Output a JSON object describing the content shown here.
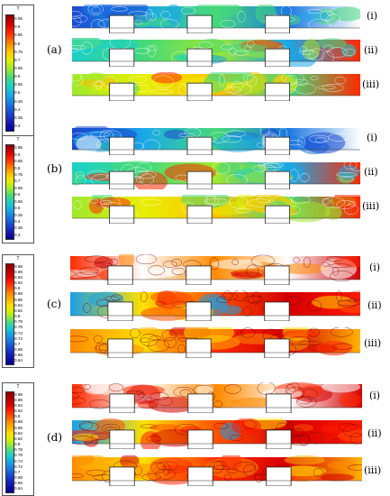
{
  "groups": [
    {
      "label": "(a)",
      "legend": {
        "title": "T",
        "ticks": [
          "0.95",
          "0.9",
          "0.85",
          "0.8",
          "0.75",
          "0.7",
          "0.65",
          "0.6",
          "0.55",
          "0.5",
          "0.45",
          "0.4",
          "0.35",
          "0.3"
        ],
        "colors": [
          "#8b0000",
          "#d40000",
          "#ff2a00",
          "#ff7a00",
          "#ffc000",
          "#e8ef00",
          "#9fe82e",
          "#45d97a",
          "#1ad0c8",
          "#1aa8e8",
          "#1a78e0",
          "#1a48d0",
          "#1a1ab8",
          "#000090"
        ]
      },
      "rows": [
        {
          "label": "(i)",
          "style": "cool"
        },
        {
          "label": "(ii)",
          "style": "mid"
        },
        {
          "label": "(iii)",
          "style": "warm"
        }
      ]
    },
    {
      "label": "(b)",
      "legend": {
        "title": "T",
        "ticks": [
          "0.95",
          "0.9",
          "0.85",
          "0.8",
          "0.75",
          "0.7",
          "0.65",
          "0.6",
          "0.55",
          "0.5",
          "0.45",
          "0.4",
          "0.35",
          "0.3"
        ],
        "colors": [
          "#8b0000",
          "#d40000",
          "#ff2a00",
          "#ff7a00",
          "#ffc000",
          "#e8ef00",
          "#9fe82e",
          "#45d97a",
          "#1ad0c8",
          "#1aa8e8",
          "#1a78e0",
          "#1a48d0",
          "#1a1ab8",
          "#000090"
        ]
      },
      "rows": [
        {
          "label": "(i)",
          "style": "cool"
        },
        {
          "label": "(ii)",
          "style": "mid"
        },
        {
          "label": "(iii)",
          "style": "warm"
        }
      ]
    },
    {
      "label": "(c)",
      "legend": {
        "title": "T",
        "ticks": [
          "0.98",
          "0.96",
          "0.94",
          "0.92",
          "0.9",
          "0.88",
          "0.86",
          "0.84",
          "0.82",
          "0.8",
          "0.78",
          "0.76",
          "0.74",
          "0.72",
          "0.7",
          "0.68",
          "0.66",
          "0.64"
        ],
        "colors": [
          "#8b0000",
          "#b00000",
          "#d40000",
          "#ff1a00",
          "#ff5000",
          "#ff8a00",
          "#ffb400",
          "#ffe000",
          "#d8f000",
          "#90e840",
          "#40d890",
          "#18c8d0",
          "#18a0e8",
          "#1878e0",
          "#1850d0",
          "#1828c0",
          "#1010a8",
          "#000090"
        ]
      },
      "rows": [
        {
          "label": "(i)",
          "style": "hot"
        },
        {
          "label": "(ii)",
          "style": "hot2"
        },
        {
          "label": "(iii)",
          "style": "hot3"
        }
      ]
    },
    {
      "label": "(d)",
      "legend": {
        "title": "T",
        "ticks": [
          "0.98",
          "0.96",
          "0.94",
          "0.92",
          "0.9",
          "0.88",
          "0.86",
          "0.84",
          "0.82",
          "0.8",
          "0.78",
          "0.76",
          "0.74",
          "0.72",
          "0.7",
          "0.68",
          "0.66",
          "0.64"
        ],
        "colors": [
          "#8b0000",
          "#b00000",
          "#d40000",
          "#ff1a00",
          "#ff5000",
          "#ff8a00",
          "#ffb400",
          "#ffe000",
          "#d8f000",
          "#90e840",
          "#40d890",
          "#18c8d0",
          "#18a0e8",
          "#1878e0",
          "#1850d0",
          "#1828c0",
          "#1010a8",
          "#000090"
        ]
      },
      "rows": [
        {
          "label": "(i)",
          "style": "hot"
        },
        {
          "label": "(ii)",
          "style": "hot2"
        },
        {
          "label": "(iii)",
          "style": "hot3"
        }
      ]
    }
  ]
}
